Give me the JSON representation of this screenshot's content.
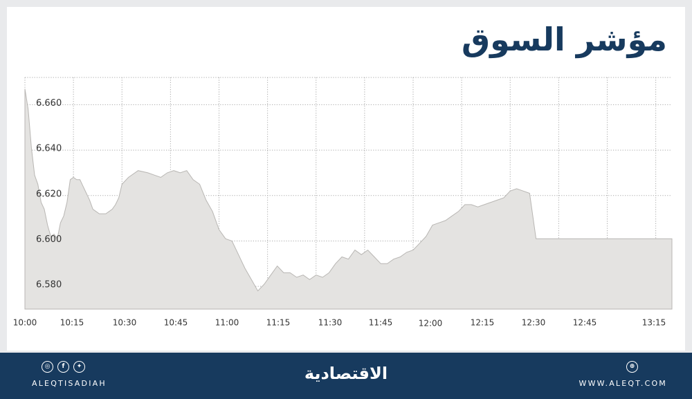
{
  "title": "مؤشر السوق",
  "chart_data": {
    "type": "area",
    "title": "مؤشر السوق",
    "xlabel": "",
    "ylabel": "",
    "ylim": [
      6.57,
      6.672
    ],
    "xlim": [
      "10:00",
      "13:20"
    ],
    "grid": true,
    "x_ticks": [
      "10:00",
      "10:15",
      "10:30",
      "10:45",
      "11:00",
      "11:15",
      "11:30",
      "11:45",
      "12:00",
      "12:15",
      "12:30",
      "12:45",
      "13:15"
    ],
    "y_ticks": [
      "6.660",
      "6.640",
      "6.620",
      "6.600",
      "6.580"
    ],
    "series": [
      {
        "x": [
          "10:00",
          "10:01",
          "10:02",
          "10:03",
          "10:04",
          "10:05",
          "10:06",
          "10:07",
          "10:08",
          "10:09",
          "10:10",
          "10:11",
          "10:12",
          "10:13",
          "10:14",
          "10:15",
          "10:16",
          "10:17",
          "10:18",
          "10:19",
          "10:20",
          "10:21",
          "10:22",
          "10:23",
          "10:24",
          "10:25",
          "10:26",
          "10:27",
          "10:28",
          "10:29",
          "10:30",
          "10:32",
          "10:35",
          "10:38",
          "10:40",
          "10:42",
          "10:44",
          "10:46",
          "10:48",
          "10:50",
          "10:52",
          "10:54",
          "10:56",
          "10:58",
          "11:00",
          "11:02",
          "11:04",
          "11:06",
          "11:08",
          "11:10",
          "11:12",
          "11:14",
          "11:16",
          "11:18",
          "11:20",
          "11:22",
          "11:24",
          "11:26",
          "11:28",
          "11:30",
          "11:32",
          "11:34",
          "11:36",
          "11:38",
          "11:40",
          "11:42",
          "11:44",
          "11:46",
          "11:48",
          "11:50",
          "11:52",
          "11:54",
          "11:56",
          "11:58",
          "12:00",
          "12:02",
          "12:04",
          "12:06",
          "12:08",
          "12:10",
          "12:12",
          "12:14",
          "12:16",
          "12:18",
          "12:20",
          "12:22",
          "12:24",
          "12:26",
          "12:28",
          "12:30",
          "12:32",
          "12:34",
          "12:36",
          "12:38",
          "12:40",
          "12:42",
          "12:44",
          "12:46",
          "12:48",
          "12:50",
          "12:52",
          "12:54",
          "12:56",
          "12:58",
          "13:00",
          "13:02",
          "13:03",
          "13:04",
          "13:06",
          "13:08",
          "13:10",
          "13:12",
          "13:15",
          "13:20"
        ],
        "values": [
          6.667,
          6.658,
          6.641,
          6.629,
          6.625,
          6.617,
          6.614,
          6.607,
          6.602,
          6.603,
          6.601,
          6.608,
          6.611,
          6.617,
          6.627,
          6.628,
          6.627,
          6.627,
          6.624,
          6.621,
          6.618,
          6.614,
          6.613,
          6.612,
          6.612,
          6.612,
          6.613,
          6.614,
          6.616,
          6.619,
          6.625,
          6.628,
          6.631,
          6.63,
          6.629,
          6.628,
          6.63,
          6.631,
          6.63,
          6.631,
          6.627,
          6.625,
          6.618,
          6.613,
          6.605,
          6.601,
          6.6,
          6.594,
          6.588,
          6.583,
          6.578,
          6.581,
          6.585,
          6.589,
          6.586,
          6.586,
          6.584,
          6.585,
          6.583,
          6.585,
          6.584,
          6.586,
          6.59,
          6.593,
          6.592,
          6.596,
          6.594,
          6.596,
          6.593,
          6.59,
          6.59,
          6.592,
          6.593,
          6.595,
          6.596,
          6.599,
          6.602,
          6.607,
          6.608,
          6.609,
          6.611,
          6.613,
          6.616,
          6.616,
          6.615,
          6.616,
          6.617,
          6.618,
          6.619,
          6.622,
          6.623,
          6.622,
          6.621,
          6.601,
          6.601,
          6.601,
          6.601,
          6.601,
          6.601,
          6.601,
          6.601,
          6.601,
          6.601,
          6.601,
          6.601,
          6.601,
          6.601,
          6.601,
          6.601,
          6.601,
          6.601,
          6.601,
          6.601,
          6.601
        ]
      }
    ],
    "colors": {
      "fill": "#e4e3e1",
      "line": "#b8b6b3",
      "grid": "#a8a8a8",
      "axis_text": "#333333"
    }
  },
  "footer": {
    "handle": "ALEQTISADIAH",
    "brand": "الاقتصادية",
    "site": "WWW.ALEQT.COM",
    "social_icons": [
      "instagram-icon",
      "facebook-icon",
      "twitter-icon"
    ],
    "site_icon": "globe-icon",
    "background": "#173a5e"
  }
}
